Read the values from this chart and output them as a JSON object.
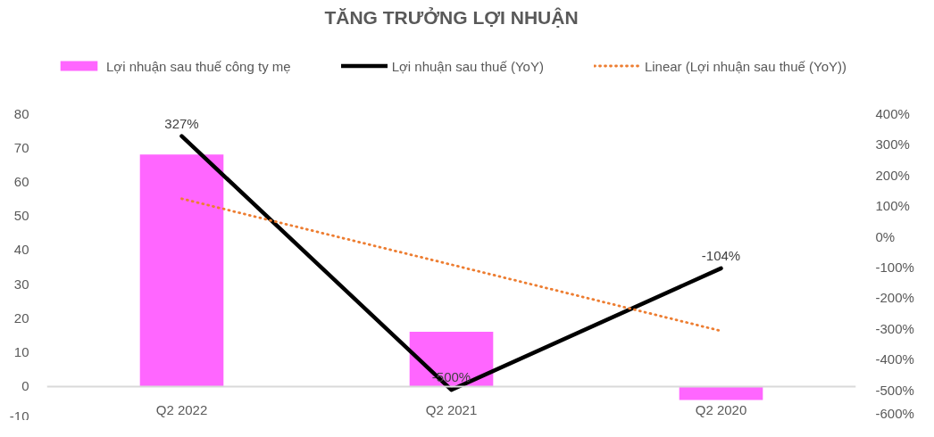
{
  "chart_data": {
    "type": "bar",
    "title": "TĂNG TRƯỞNG LỢI NHUẬN",
    "categories": [
      "Q2 2022",
      "Q2 2021",
      "Q2 2020"
    ],
    "series": [
      {
        "name": "Lợi nhuận sau thuế công ty mẹ",
        "color": "#ff66ff",
        "values": [
          68,
          16,
          -4
        ]
      },
      {
        "name": "Lợi nhuận sau thuế (YoY)",
        "type": "line",
        "axis": "y2",
        "color": "#000000",
        "values": [
          327,
          -500,
          -104
        ],
        "value_labels": [
          "327%",
          "-500%",
          "-104%"
        ]
      },
      {
        "name": "Linear (Lợi nhuận sau thuế (YoY))",
        "type": "line",
        "axis": "y2",
        "color": "#ed7d31",
        "line_style": "dotted",
        "values": [
          123,
          -92,
          -308
        ]
      }
    ],
    "ylim": [
      -10,
      80
    ],
    "yticks": [
      -10,
      0,
      10,
      20,
      30,
      40,
      50,
      60,
      70,
      80
    ],
    "y2lim": [
      -600,
      400
    ],
    "y2ticks": [
      {
        "value": -600,
        "label": "-600%"
      },
      {
        "value": -500,
        "label": "-500%"
      },
      {
        "value": -400,
        "label": "-400%"
      },
      {
        "value": -300,
        "label": "-300%"
      },
      {
        "value": -200,
        "label": "-200%"
      },
      {
        "value": -100,
        "label": "-100%"
      },
      {
        "value": 0,
        "label": "0%"
      },
      {
        "value": 100,
        "label": "100%"
      },
      {
        "value": 200,
        "label": "200%"
      },
      {
        "value": 300,
        "label": "300%"
      },
      {
        "value": 400,
        "label": "400%"
      }
    ],
    "legend": "top"
  }
}
